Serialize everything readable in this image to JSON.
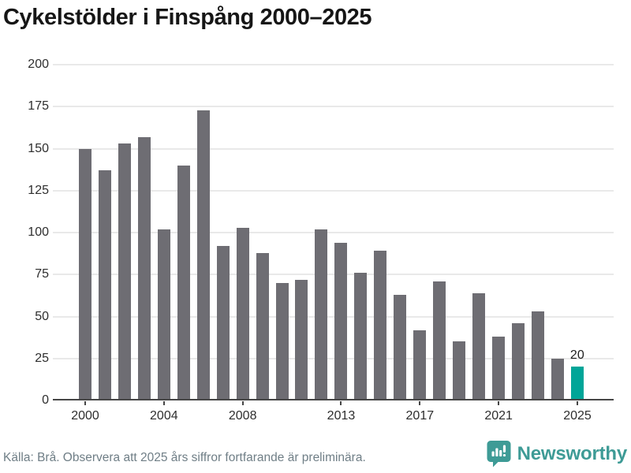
{
  "title": "Cykelstölder i Finspång 2000–2025",
  "footer": {
    "source": "Källa: Brå. Observera att 2025 års siffror fortfarande är preliminära."
  },
  "branding": {
    "name": "Newsworthy",
    "color": "#3e9b96",
    "icon": "newsworthy-speech-bubble-chart-icon"
  },
  "colors": {
    "bar": "#6e6d73",
    "highlight": "#00a598",
    "grid": "#e9e9e9",
    "axis": "#464646",
    "title_text": "#161616",
    "tick_text": "#2e2e2e",
    "source_text": "#6f7e86"
  },
  "chart_data": {
    "type": "bar",
    "title": "Cykelstölder i Finspång 2000–2025",
    "x": [
      2000,
      2001,
      2002,
      2003,
      2004,
      2005,
      2006,
      2007,
      2008,
      2009,
      2010,
      2011,
      2012,
      2013,
      2014,
      2015,
      2016,
      2017,
      2018,
      2019,
      2020,
      2021,
      2022,
      2023,
      2024,
      2025
    ],
    "values": [
      150,
      137,
      153,
      157,
      102,
      140,
      173,
      92,
      103,
      88,
      70,
      72,
      102,
      94,
      76,
      89,
      63,
      42,
      71,
      35,
      64,
      38,
      46,
      53,
      25,
      20
    ],
    "highlight_year": 2025,
    "value_labels": {
      "2025": "20"
    },
    "y_ticks": [
      0,
      25,
      50,
      75,
      100,
      125,
      150,
      175,
      200
    ],
    "x_tick_years": [
      2000,
      2004,
      2008,
      2013,
      2017,
      2021,
      2025
    ],
    "ylim": [
      0,
      200
    ],
    "grid": true,
    "legend": "none",
    "xlabel": "",
    "ylabel": ""
  }
}
